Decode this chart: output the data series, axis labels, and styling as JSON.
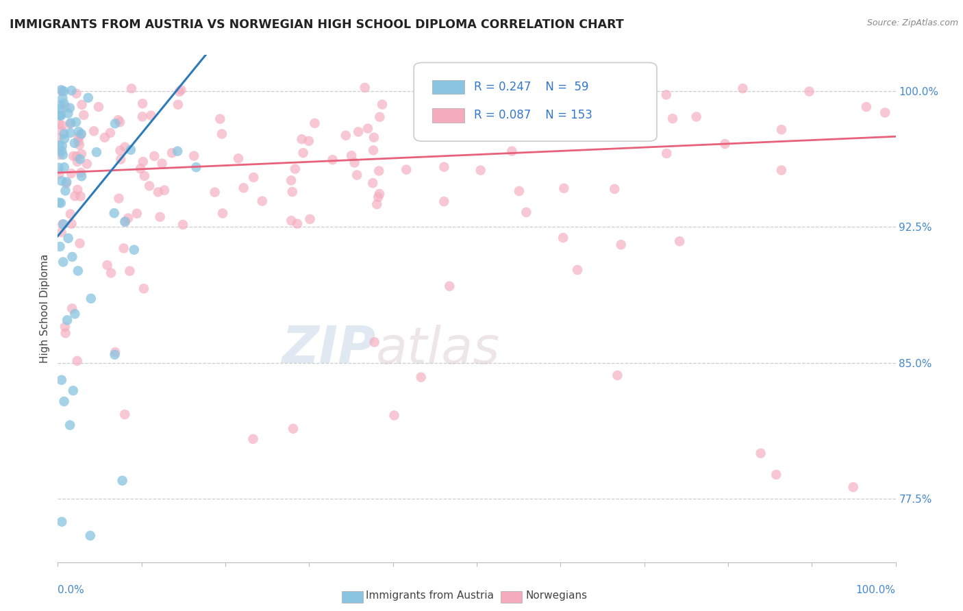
{
  "title": "IMMIGRANTS FROM AUSTRIA VS NORWEGIAN HIGH SCHOOL DIPLOMA CORRELATION CHART",
  "source": "Source: ZipAtlas.com",
  "ylabel": "High School Diploma",
  "legend_r1": "R = 0.247",
  "legend_n1": "N =  59",
  "legend_r2": "R = 0.087",
  "legend_n2": "N = 153",
  "legend_label1": "Immigrants from Austria",
  "legend_label2": "Norwegians",
  "right_yticks": [
    77.5,
    85.0,
    92.5,
    100.0
  ],
  "color_blue": "#89C4E1",
  "color_pink": "#F4ABBE",
  "color_blue_line": "#2B7BBA",
  "color_pink_line": "#E8607A",
  "watermark_zip": "ZIP",
  "watermark_atlas": "atlas",
  "ymin": 74.0,
  "ymax": 102.0,
  "xmin": 0.0,
  "xmax": 100.0
}
